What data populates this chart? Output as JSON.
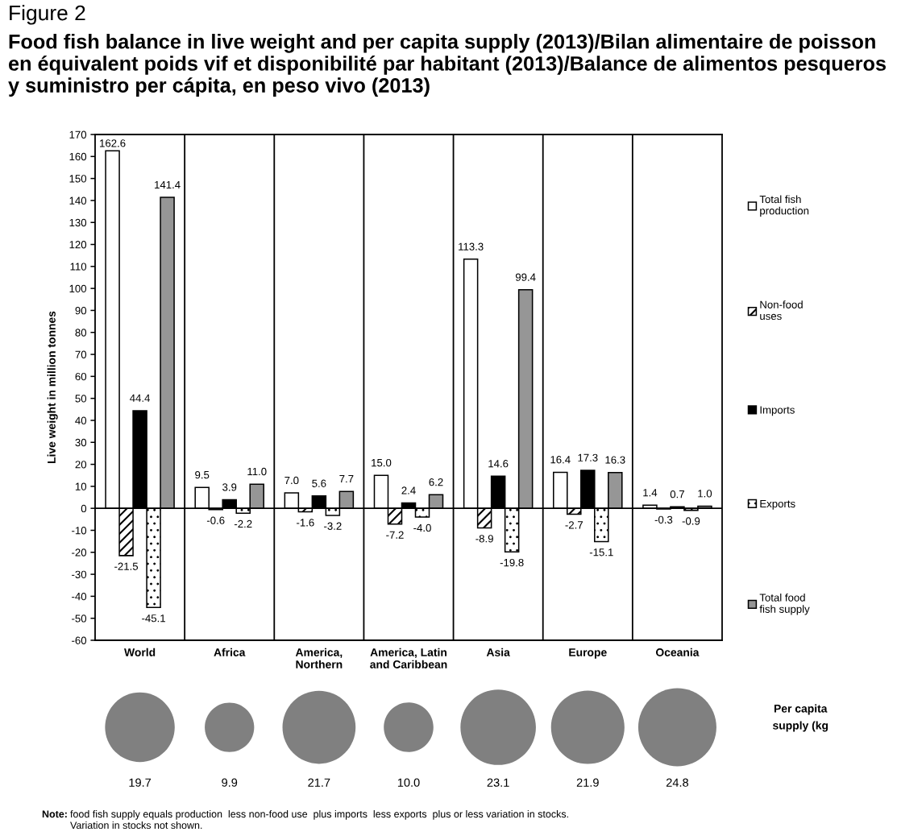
{
  "chart_data": [
    {
      "type": "bar",
      "title": "Figure 2",
      "subtitle": "Food fish balance in live weight and per capita supply (2013)/Bilan alimentaire de poisson en équivalent poids vif et disponibilité par habitant (2013)/Balance de alimentos pesqueros y suministro per cápita, en peso vivo (2013)",
      "ylabel": "Live weight in million tonnes",
      "categories": [
        "World",
        "Africa",
        "America, Northern",
        "America, Latin and Caribbean",
        "Asia",
        "Europe",
        "Oceania"
      ],
      "series": [
        {
          "name": "Total fish production",
          "color": "#ffffff",
          "values": [
            162.6,
            9.5,
            7.0,
            15.0,
            113.3,
            16.4,
            1.4
          ],
          "value_labels": [
            "162.6",
            "9.5",
            "7.0",
            "15.0",
            "113.3",
            "16.4",
            "1.4"
          ]
        },
        {
          "name": "Non-food uses",
          "color": "#ffffff",
          "values": [
            -21.5,
            -0.6,
            -1.6,
            -7.2,
            -8.9,
            -2.7,
            -0.3
          ],
          "value_labels": [
            "-21.5",
            "-0.6",
            "-1.6",
            "-7.2",
            "-8.9",
            "-2.7",
            "-0.3"
          ]
        },
        {
          "name": "Imports",
          "color": "#000000",
          "values": [
            44.4,
            3.9,
            5.6,
            2.4,
            14.6,
            17.3,
            0.7
          ],
          "value_labels": [
            "44.4",
            "3.9",
            "5.6",
            "2.4",
            "14.6",
            "17.3",
            "0.7"
          ]
        },
        {
          "name": "Exports",
          "color": "#ffffff",
          "values": [
            -45.1,
            -2.2,
            -3.2,
            -4.0,
            -19.8,
            -15.1,
            -0.9
          ],
          "value_labels": [
            "-45.1",
            "-2.2",
            "-3.2",
            "-4.0",
            "-19.8",
            "-15.1",
            "-0.9"
          ]
        },
        {
          "name": "Total food fish supply",
          "color": "#969696",
          "values": [
            141.4,
            11.0,
            7.7,
            6.2,
            99.4,
            16.3,
            1.0
          ],
          "value_labels": [
            "141.4",
            "11.0",
            "7.7",
            "6.2",
            "99.4",
            "16.3",
            "1.0"
          ]
        }
      ],
      "ylim": [
        -60,
        170
      ],
      "yticks": [
        -60,
        -50,
        -40,
        -30,
        -20,
        -10,
        0,
        10,
        20,
        30,
        40,
        50,
        60,
        70,
        80,
        90,
        100,
        110,
        120,
        130,
        140,
        150,
        160,
        170
      ],
      "grid": "x",
      "legend": "right",
      "ref_lines": [
        {
          "axis": "y",
          "value": 0,
          "color": "#000000"
        }
      ]
    },
    {
      "type": "other",
      "title": "Per capita supply (kg",
      "categories": [
        null,
        null,
        null,
        null,
        null,
        null,
        null
      ],
      "values": [
        19.7,
        9.9,
        21.7,
        10.0,
        23.1,
        21.9,
        24.8
      ],
      "value_labels": [
        "19.7",
        "9.9",
        "21.7",
        "10.0",
        "23.1",
        "21.9",
        "24.8"
      ],
      "color": "#808080",
      "annotations": [
        "Note: food fish supply equals production  less non-food use  plus imports  less exports  plus or less variation in stocks.\nVariation in stocks not shown."
      ]
    }
  ]
}
